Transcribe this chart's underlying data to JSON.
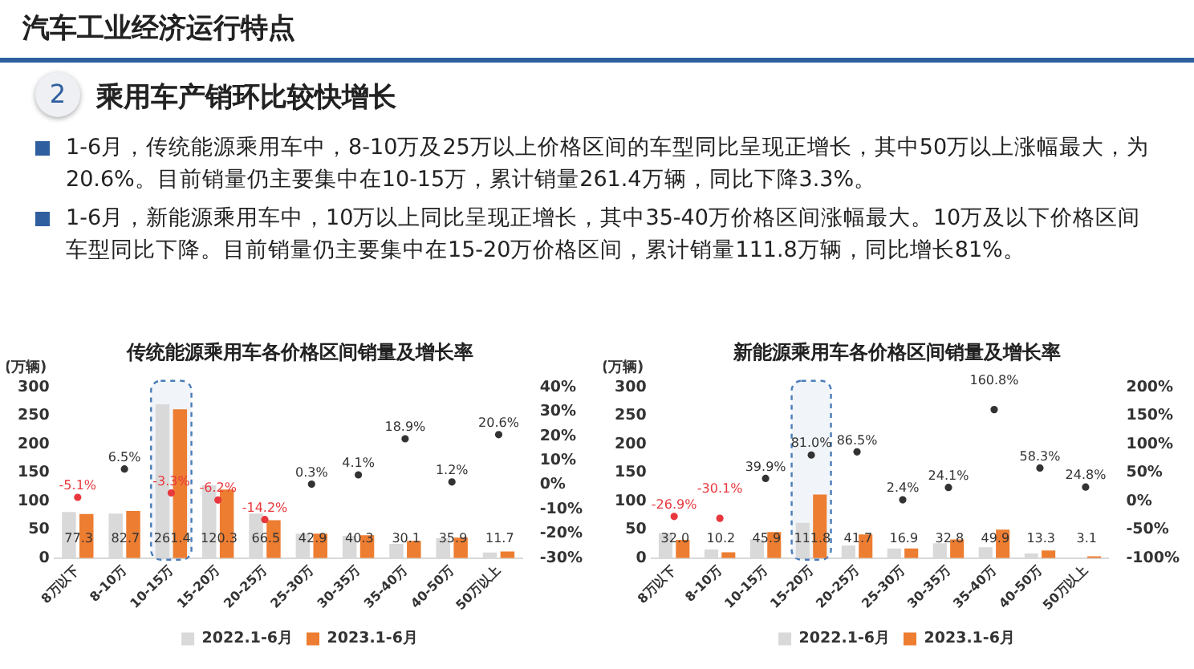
{
  "chart_data": [
    {
      "type": "other",
      "title": "汽车工业经济运行特点",
      "subtitle": "乘用车产销环比较快增长",
      "annotations": [
        "2",
        "1-6月，传统能源乘用车中，8-10万及25万以上价格区间的车型同比呈现正增长，其中50万以上涨幅最大，为20.6%。目前销量仍主要集中在10-15万，累计销量261.4万辆，同比下降3.3%。",
        "1-6月，新能源乘用车中，10万以上同比呈现正增长，其中35-40万价格区间涨幅最大。10万及以下价格区间车型同比下降。目前销量仍主要集中在15-20万价格区间，累计销量111.8万辆，同比增长81%。"
      ]
    },
    {
      "type": "bar",
      "title": "传统能源乘用车各价格区间销量及增长率",
      "ylabel": "(万辆)",
      "bands": [
        {
          "axis": "x",
          "from": "10-15万",
          "to": "10-15万",
          "color": "#4a7db8"
        }
      ],
      "categories": [
        "8万以下",
        "8-10万",
        "10-15万",
        "15-20万",
        "20-25万",
        "25-30万",
        "30-35万",
        "35-40万",
        "40-50万",
        "50万以上"
      ],
      "series": [
        {
          "name": "2022.1-6月",
          "color": "#d9d9d9",
          "values": [
            81,
            78,
            270,
            128,
            78,
            43,
            39,
            25,
            35,
            10
          ]
        },
        {
          "name": "2023.1-6月",
          "color": "#ed7d31",
          "values": [
            77.3,
            82.7,
            261.4,
            120.3,
            66.5,
            42.9,
            40.3,
            30.1,
            35.9,
            11.7
          ],
          "value_labels": [
            "77.3",
            "82.7",
            "261.4",
            "120.3",
            "66.5",
            "42.9",
            "40.3",
            "30.1",
            "35.9",
            "11.7"
          ]
        },
        {
          "type": "scatter",
          "axis": "y2",
          "marker": "circle",
          "colors": [
            "#e8383d",
            "#333333",
            "#e8383d",
            "#e8383d",
            "#e8383d",
            "#333333",
            "#333333",
            "#333333",
            "#333333",
            "#333333"
          ],
          "values": [
            -5.1,
            6.5,
            -3.3,
            -6.2,
            -14.2,
            0.3,
            4.1,
            18.9,
            1.2,
            20.6
          ],
          "value_labels": [
            "-5.1%",
            "6.5%",
            "-3.3%",
            "-6.2%",
            "-14.2%",
            "0.3%",
            "4.1%",
            "18.9%",
            "1.2%",
            "20.6%"
          ]
        }
      ],
      "ylim": [
        0,
        300
      ],
      "yticks": [
        0,
        50,
        100,
        150,
        200,
        250,
        300
      ],
      "y2lim": [
        -30,
        40
      ],
      "y2ticks": [
        {
          "value": -30,
          "label": "-30%"
        },
        {
          "value": -20,
          "label": "-20%"
        },
        {
          "value": -10,
          "label": "-10%"
        },
        {
          "value": 0,
          "label": "0%"
        },
        {
          "value": 10,
          "label": "10%"
        },
        {
          "value": 20,
          "label": "20%"
        },
        {
          "value": 30,
          "label": "30%"
        },
        {
          "value": 40,
          "label": "40%"
        }
      ],
      "legend": "bottom",
      "grid": false
    },
    {
      "type": "bar",
      "title": "新能源乘用车各价格区间销量及增长率",
      "ylabel": "(万辆)",
      "bands": [
        {
          "axis": "x",
          "from": "15-20万",
          "to": "15-20万",
          "color": "#4a7db8"
        }
      ],
      "categories": [
        "8万以下",
        "8-10万",
        "10-15万",
        "15-20万",
        "20-25万",
        "25-30万",
        "30-35万",
        "35-40万",
        "40-50万",
        "50万以上"
      ],
      "series": [
        {
          "name": "2022.1-6月",
          "color": "#d9d9d9",
          "values": [
            44,
            15,
            33,
            62,
            22,
            17,
            26,
            19,
            8,
            null
          ]
        },
        {
          "name": "2023.1-6月",
          "color": "#ed7d31",
          "values": [
            32.0,
            10.2,
            45.9,
            111.8,
            41.7,
            16.9,
            32.8,
            49.9,
            13.3,
            3.1
          ],
          "value_labels": [
            "32.0",
            "10.2",
            "45.9",
            "111.8",
            "41.7",
            "16.9",
            "32.8",
            "49.9",
            "13.3",
            "3.1"
          ]
        },
        {
          "type": "scatter",
          "axis": "y2",
          "marker": "circle",
          "colors": [
            "#e8383d",
            "#e8383d",
            "#333333",
            "#333333",
            "#333333",
            "#333333",
            "#333333",
            "#333333",
            "#333333",
            "#333333"
          ],
          "values": [
            -26.9,
            -30.1,
            39.9,
            81.0,
            86.5,
            2.4,
            24.1,
            160.8,
            58.3,
            24.8
          ],
          "value_labels": [
            "-26.9%",
            "-30.1%",
            "39.9%",
            "81.0%",
            "86.5%",
            "2.4%",
            "24.1%",
            "160.8%",
            "58.3%",
            "24.8%"
          ]
        }
      ],
      "ylim": [
        0,
        300
      ],
      "yticks": [
        0,
        50,
        100,
        150,
        200,
        250,
        300
      ],
      "y2lim": [
        -100,
        200
      ],
      "y2ticks": [
        {
          "value": -100,
          "label": "-100%"
        },
        {
          "value": -50,
          "label": "-50%"
        },
        {
          "value": 0,
          "label": "0%"
        },
        {
          "value": 50,
          "label": "50%"
        },
        {
          "value": 100,
          "label": "100%"
        },
        {
          "value": 150,
          "label": "150%"
        },
        {
          "value": 200,
          "label": "200%"
        }
      ],
      "legend": "bottom",
      "grid": false
    }
  ]
}
